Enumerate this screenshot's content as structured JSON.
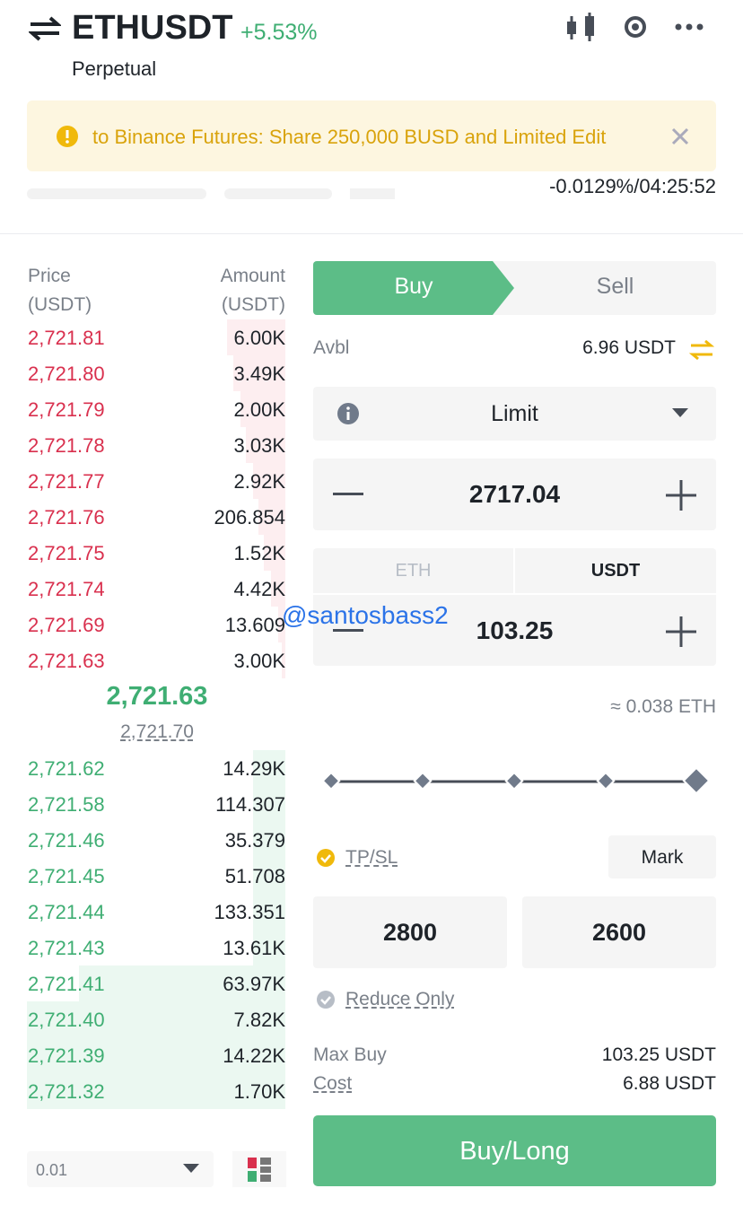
{
  "header": {
    "symbol": "ETHUSDT",
    "change": "+5.53%",
    "contract": "Perpetual"
  },
  "banner": {
    "text": "to Binance Futures: Share 250,000 BUSD and Limited Edit"
  },
  "funding": "-0.0129%/04:25:52",
  "order_book": {
    "price_label": "Price",
    "price_unit": "(USDT)",
    "amount_label": "Amount",
    "amount_unit": "(USDT)",
    "asks": [
      {
        "price": "2,721.81",
        "amount": "6.00K"
      },
      {
        "price": "2,721.80",
        "amount": "3.49K"
      },
      {
        "price": "2,721.79",
        "amount": "2.00K"
      },
      {
        "price": "2,721.78",
        "amount": "3.03K"
      },
      {
        "price": "2,721.77",
        "amount": "2.92K"
      },
      {
        "price": "2,721.76",
        "amount": "206.854"
      },
      {
        "price": "2,721.75",
        "amount": "1.52K"
      },
      {
        "price": "2,721.74",
        "amount": "4.42K"
      },
      {
        "price": "2,721.69",
        "amount": "13.609"
      },
      {
        "price": "2,721.63",
        "amount": "3.00K"
      }
    ],
    "last_price": "2,721.63",
    "mark_price": "2,721.70",
    "bids": [
      {
        "price": "2,721.62",
        "amount": "14.29K"
      },
      {
        "price": "2,721.58",
        "amount": "114.307"
      },
      {
        "price": "2,721.46",
        "amount": "35.379"
      },
      {
        "price": "2,721.45",
        "amount": "51.708"
      },
      {
        "price": "2,721.44",
        "amount": "133.351"
      },
      {
        "price": "2,721.43",
        "amount": "13.61K"
      },
      {
        "price": "2,721.41",
        "amount": "63.97K"
      },
      {
        "price": "2,721.40",
        "amount": "7.82K"
      },
      {
        "price": "2,721.39",
        "amount": "14.22K"
      },
      {
        "price": "2,721.32",
        "amount": "1.70K"
      }
    ],
    "precision": "0.01"
  },
  "order_form": {
    "tabs": [
      "Buy",
      "Sell"
    ],
    "avbl_label": "Avbl",
    "avbl_value": "6.96 USDT",
    "order_type": "Limit",
    "price": "2717.04",
    "unit_tabs": [
      "ETH",
      "USDT"
    ],
    "amount": "103.25",
    "estimate": "≈ 0.038 ETH",
    "tpsl_label": "TP/SL",
    "trigger": "Mark",
    "take_profit": "2800",
    "stop_loss": "2600",
    "reduce_only": "Reduce Only",
    "max_buy_label": "Max Buy",
    "max_buy_value": "103.25 USDT",
    "cost_label": "Cost",
    "cost_value": "6.88 USDT",
    "submit": "Buy/Long"
  },
  "watermark": "@santosbass2"
}
